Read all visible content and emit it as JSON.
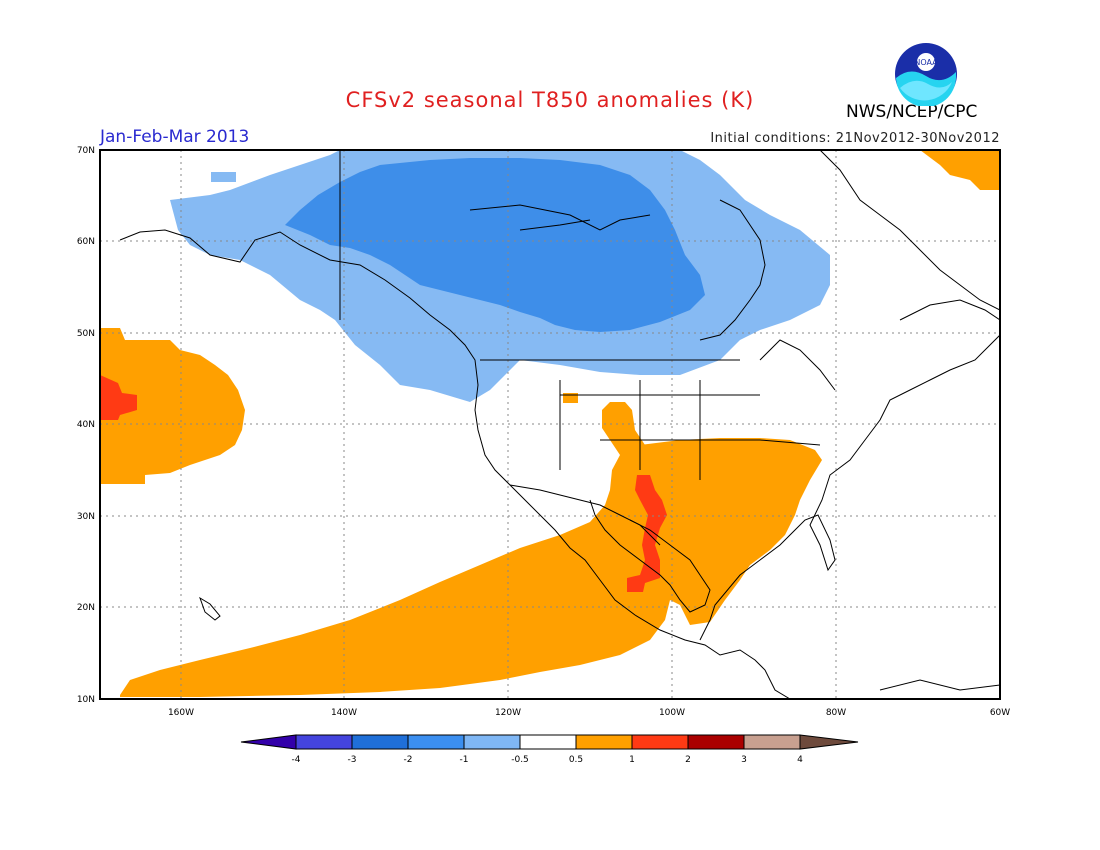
{
  "header": {
    "title": "CFSv2 seasonal T850 anomalies (K)",
    "period": "Jan-Feb-Mar 2013",
    "initial_conditions": "Initial conditions: 21Nov2012-30Nov2012",
    "agency": "NWS/NCEP/CPC",
    "logo_text": "NOAA"
  },
  "map": {
    "projection": "lat-lon",
    "lon_range": [
      "170W",
      "60W"
    ],
    "lat_range": [
      "10N",
      "70N"
    ],
    "lat_labels": [
      "70N",
      "60N",
      "50N",
      "40N",
      "30N",
      "20N",
      "10N"
    ],
    "lon_labels": [
      "160W",
      "140W",
      "120W",
      "100W",
      "80W",
      "60W"
    ],
    "grid": true,
    "anomaly_regions": [
      {
        "name": "Canada/Alaska cold anomaly",
        "range": "-1 to -0.5"
      },
      {
        "name": "Canada core cold anomaly",
        "range": "-2 to -1"
      },
      {
        "name": "NE Pacific warm anomaly",
        "range": "0.5 to 1"
      },
      {
        "name": "Subtropical Pacific to Mexico warm band",
        "range": "0.5 to 1"
      },
      {
        "name": "Southern US warm anomaly",
        "range": "0.5 to 1"
      },
      {
        "name": "Texas/Mexico strong warm anomaly",
        "range": "1 to 2"
      }
    ]
  },
  "colorbar": {
    "tick_labels": [
      "-4",
      "-3",
      "-2",
      "-1",
      "-0.5",
      "0.5",
      "1",
      "2",
      "3",
      "4"
    ],
    "colors": [
      "#3300aa",
      "#4444dd",
      "#1f6fd8",
      "#3b8ff0",
      "#7fb7f5",
      "#ffffff",
      "#ffa000",
      "#ff3a14",
      "#aa0000",
      "#c8a090",
      "#6e4a3c"
    ]
  }
}
